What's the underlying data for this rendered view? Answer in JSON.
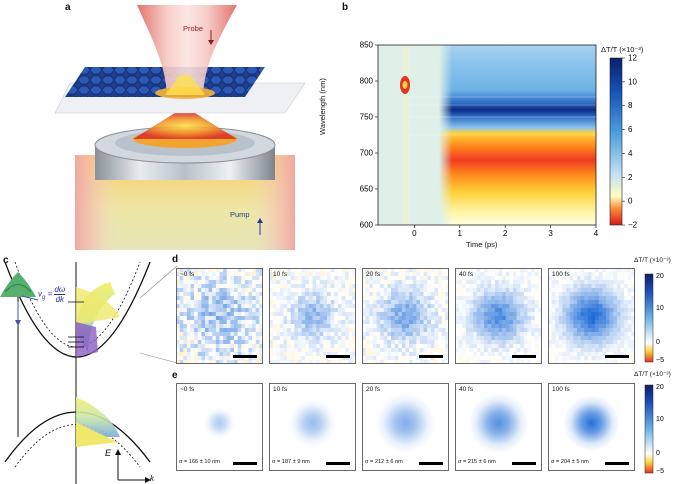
{
  "panel_labels": {
    "a": "a",
    "b": "b",
    "c": "c",
    "d": "d",
    "e": "e"
  },
  "panel_a": {
    "probe_label": "Probe",
    "pump_label": "Pump"
  },
  "chart_data": [
    {
      "type": "heatmap",
      "panel": "b",
      "xlabel": "Time (ps)",
      "ylabel": "Wavelength (nm)",
      "xlim": [
        -0.8,
        4
      ],
      "ylim": [
        600,
        850
      ],
      "xticks": [
        "0",
        "1",
        "2",
        "3",
        "4"
      ],
      "yticks": [
        "600",
        "650",
        "700",
        "750",
        "800",
        "850"
      ],
      "colorbar": {
        "label": "ΔT/T (×10⁻³)",
        "ticks": [
          "−2",
          "0",
          "2",
          "4",
          "6",
          "8",
          "10",
          "12"
        ],
        "range": [
          -2,
          12
        ]
      },
      "features": [
        {
          "name": "exciton bleach",
          "wavelength_nm": 760,
          "value": 12
        },
        {
          "name": "broad induced absorption",
          "wavelength_range_nm": [
            680,
            735
          ],
          "value": -2
        },
        {
          "name": "early-time feature",
          "wavelength_nm": 795,
          "time_ps": 0,
          "value": -2
        }
      ]
    },
    {
      "type": "heatmap",
      "panel": "d",
      "colorbar": {
        "label": "ΔT/T (×10⁻³)",
        "ticks": [
          "20",
          "10",
          "0",
          "−5"
        ],
        "range": [
          -5,
          20
        ]
      },
      "frames": [
        {
          "time": "~0 fs",
          "sigma_rel": 0.3,
          "amplitude": 0.35,
          "noise": 0.55
        },
        {
          "time": "10 fs",
          "sigma_rel": 0.18,
          "amplitude": 0.45,
          "noise": 0.3
        },
        {
          "time": "20 fs",
          "sigma_rel": 0.2,
          "amplitude": 0.55,
          "noise": 0.3
        },
        {
          "time": "40 fs",
          "sigma_rel": 0.2,
          "amplitude": 0.75,
          "noise": 0.2
        },
        {
          "time": "100 fs",
          "sigma_rel": 0.21,
          "amplitude": 0.95,
          "noise": 0.15
        }
      ]
    },
    {
      "type": "heatmap",
      "panel": "e",
      "colorbar": {
        "label": "ΔT/T (×10⁻³)",
        "ticks": [
          "20",
          "10",
          "0",
          "−5"
        ],
        "range": [
          -5,
          20
        ]
      },
      "frames": [
        {
          "time": "~0 fs",
          "sigma": "σ = 166 ± 10 nm",
          "amplitude": 0.35
        },
        {
          "time": "10 fs",
          "sigma": "σ = 187 ± 9 nm",
          "amplitude": 0.45
        },
        {
          "time": "20 fs",
          "sigma": "σ = 212 ± 6 nm",
          "amplitude": 0.55
        },
        {
          "time": "40 fs",
          "sigma": "σ = 215 ± 6 nm",
          "amplitude": 0.75
        },
        {
          "time": "100 fs",
          "sigma": "σ = 204 ± 5 nm",
          "amplitude": 0.95
        }
      ]
    }
  ],
  "panel_c": {
    "energy_label": "E",
    "k_label": "k",
    "vg_label": "v",
    "vg_sub": "g",
    "eq": "=",
    "dw": "dω",
    "dk": "dk"
  }
}
